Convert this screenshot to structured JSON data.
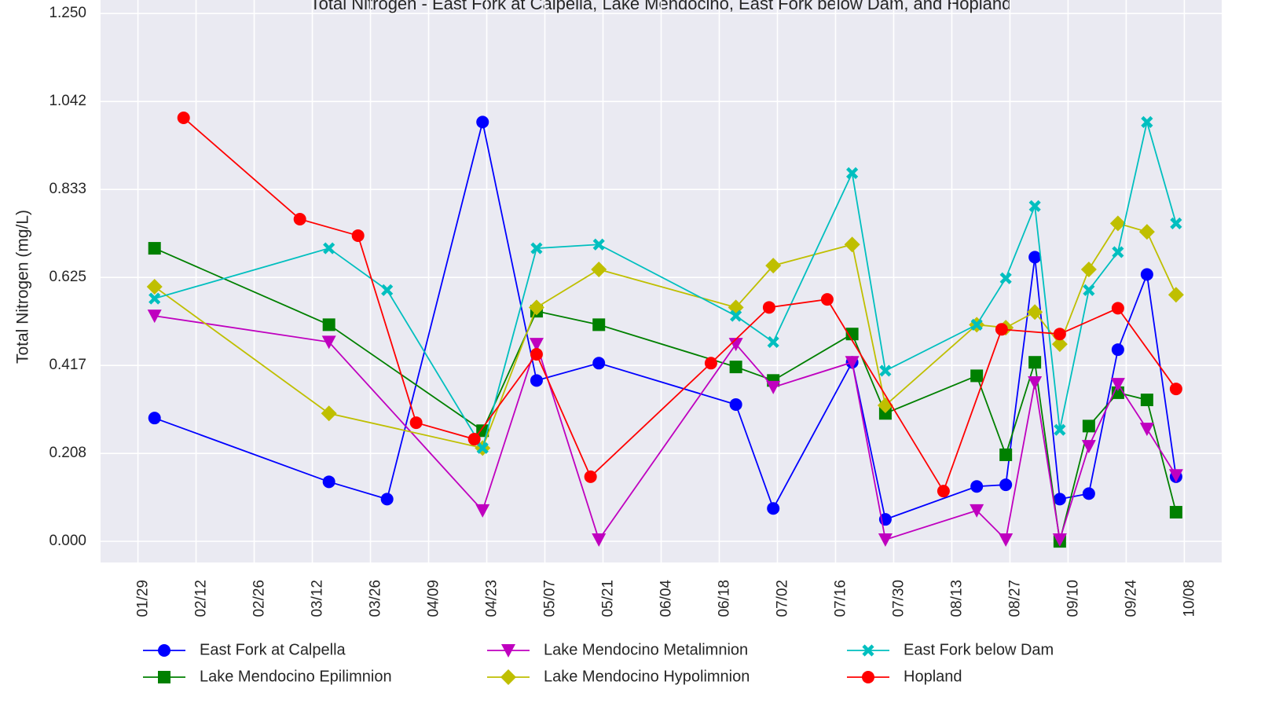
{
  "chart_data": {
    "type": "line",
    "title": "Total Nitrogen - East Fork at Calpella, Lake Mendocino, East Fork below Dam, and Hopland",
    "y_label": "Total Nitrogen (mg/L)",
    "xlim": [
      "01/20",
      "10/17"
    ],
    "xticks": [
      "01/29",
      "02/12",
      "02/26",
      "03/12",
      "03/26",
      "04/09",
      "04/23",
      "05/07",
      "05/21",
      "06/04",
      "06/18",
      "07/02",
      "07/16",
      "07/30",
      "08/13",
      "08/27",
      "09/10",
      "09/24",
      "10/08"
    ],
    "ylim": [
      -0.05,
      1.282
    ],
    "yticks": [
      {
        "value": 0,
        "label": "0.000"
      },
      {
        "value": 0.20833,
        "label": "0.208"
      },
      {
        "value": 0.41667,
        "label": "0.417"
      },
      {
        "value": 0.625,
        "label": "0.625"
      },
      {
        "value": 0.83333,
        "label": "0.833"
      },
      {
        "value": 1.04167,
        "label": "1.042"
      },
      {
        "value": 1.25,
        "label": "1.250"
      }
    ],
    "grid": true,
    "legend": "bottom",
    "series": [
      {
        "name": "East Fork at Calpella",
        "color": "#0000ff",
        "marker": "o",
        "x": [
          "02/02",
          "03/16",
          "03/30",
          "04/22",
          "05/05",
          "05/20",
          "06/22",
          "07/01",
          "07/20",
          "07/28",
          "08/19",
          "08/26",
          "09/02",
          "09/08",
          "09/15",
          "09/22",
          "09/29",
          "10/06"
        ],
        "values": [
          0.292,
          0.141,
          0.1,
          0.993,
          0.381,
          0.422,
          0.324,
          0.078,
          0.424,
          0.052,
          0.13,
          0.134,
          0.673,
          0.1,
          0.113,
          0.454,
          0.632,
          0.153
        ]
      },
      {
        "name": "Lake Mendocino Epilimnion",
        "color": "#008000",
        "marker": "s",
        "x": [
          "02/02",
          "03/16",
          "04/22",
          "05/05",
          "05/20",
          "06/22",
          "07/01",
          "07/20",
          "07/28",
          "08/19",
          "08/26",
          "09/02",
          "09/08",
          "09/15",
          "09/22",
          "09/29",
          "10/06"
        ],
        "values": [
          0.694,
          0.513,
          0.262,
          0.545,
          0.513,
          0.413,
          0.381,
          0.491,
          0.303,
          0.392,
          0.205,
          0.424,
          0.0,
          0.273,
          0.352,
          0.335,
          0.069
        ]
      },
      {
        "name": "Lake Mendocino Metalimnion",
        "color": "#bf00bf",
        "marker": "v",
        "x": [
          "02/02",
          "03/16",
          "04/22",
          "05/05",
          "05/20",
          "06/22",
          "07/01",
          "07/20",
          "07/28",
          "08/19",
          "08/26",
          "09/02",
          "09/08",
          "09/15",
          "09/22",
          "09/29",
          "10/06"
        ],
        "values": [
          0.534,
          0.472,
          0.073,
          0.467,
          0.004,
          0.467,
          0.365,
          0.424,
          0.004,
          0.073,
          0.004,
          0.376,
          0.004,
          0.225,
          0.372,
          0.266,
          0.156
        ]
      },
      {
        "name": "Lake Mendocino Hypolimnion",
        "color": "#bfbf00",
        "marker": "D",
        "x": [
          "02/02",
          "03/16",
          "04/22",
          "05/05",
          "05/20",
          "06/22",
          "07/01",
          "07/20",
          "07/28",
          "08/19",
          "08/26",
          "09/02",
          "09/08",
          "09/15",
          "09/22",
          "09/29",
          "10/06"
        ],
        "values": [
          0.603,
          0.303,
          0.221,
          0.554,
          0.644,
          0.554,
          0.653,
          0.703,
          0.322,
          0.513,
          0.506,
          0.543,
          0.467,
          0.644,
          0.753,
          0.733,
          0.584
        ]
      },
      {
        "name": "East Fork below Dam",
        "color": "#00bfbf",
        "marker": "X",
        "x": [
          "02/02",
          "03/16",
          "03/30",
          "04/22",
          "05/05",
          "05/20",
          "06/22",
          "07/01",
          "07/20",
          "07/28",
          "08/19",
          "08/26",
          "09/02",
          "09/08",
          "09/15",
          "09/22",
          "09/29",
          "10/06"
        ],
        "values": [
          0.575,
          0.694,
          0.595,
          0.221,
          0.694,
          0.703,
          0.534,
          0.472,
          0.872,
          0.404,
          0.513,
          0.623,
          0.794,
          0.264,
          0.595,
          0.685,
          0.993,
          0.753
        ]
      },
      {
        "name": "Hopland",
        "color": "#ff0000",
        "marker": "o",
        "x": [
          "02/09",
          "03/09",
          "03/23",
          "04/06",
          "04/20",
          "05/05",
          "05/18",
          "06/16",
          "06/30",
          "07/14",
          "08/11",
          "08/25",
          "09/08",
          "09/22",
          "10/06"
        ],
        "values": [
          1.003,
          0.763,
          0.724,
          0.281,
          0.242,
          0.443,
          0.153,
          0.422,
          0.554,
          0.573,
          0.119,
          0.502,
          0.491,
          0.552,
          0.361
        ]
      }
    ]
  }
}
